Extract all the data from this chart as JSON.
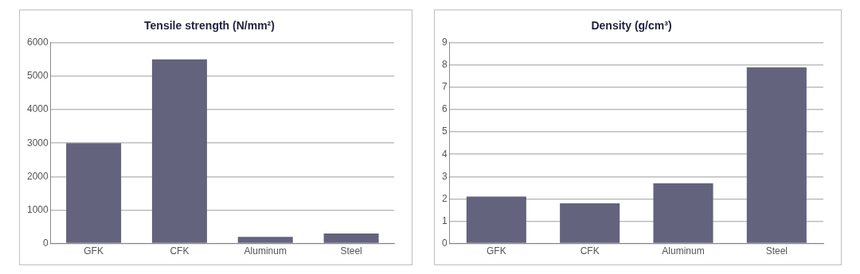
{
  "chart_data": [
    {
      "type": "bar",
      "title": "Tensile strength (N/mm²)",
      "categories": [
        "GFK",
        "CFK",
        "Aluminum",
        "Steel"
      ],
      "values": [
        3000,
        5500,
        200,
        300
      ],
      "color": "#63637e",
      "ylim": [
        0,
        6000
      ],
      "yticks": [
        0,
        1000,
        2000,
        3000,
        4000,
        5000,
        6000
      ],
      "grid": "y",
      "legend": false
    },
    {
      "type": "bar",
      "title": "Density (g/cm³)",
      "categories": [
        "GFK",
        "CFK",
        "Aluminum",
        "Steel"
      ],
      "values": [
        2.1,
        1.8,
        2.7,
        7.9
      ],
      "color": "#63637e",
      "ylim": [
        0,
        9
      ],
      "yticks": [
        0,
        1,
        2,
        3,
        4,
        5,
        6,
        7,
        8,
        9
      ],
      "grid": "y",
      "legend": false
    }
  ]
}
